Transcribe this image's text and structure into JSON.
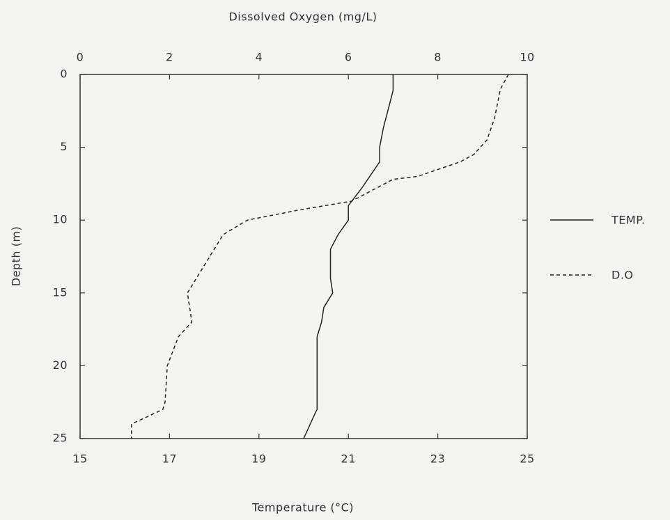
{
  "chart_data": {
    "type": "line",
    "x2label": "Dissolved Oxygen (mg/L)",
    "xlabel": "Temperature (°C)",
    "ylabel": "Depth (m)",
    "xlim": [
      15,
      25
    ],
    "xticks": [
      15,
      17,
      19,
      21,
      23,
      25
    ],
    "x2lim": [
      0,
      10
    ],
    "x2ticks": [
      0,
      2,
      4,
      6,
      8,
      10
    ],
    "ylim": [
      0,
      25
    ],
    "yticks": [
      0,
      5,
      10,
      15,
      20,
      25
    ],
    "y_inverted": true,
    "legend": "right",
    "series": [
      {
        "name": "TEMP.",
        "axis": "x",
        "color": "#222222",
        "dash": false,
        "values": [
          22.0,
          22.0,
          21.78,
          21.7,
          21.7,
          21.3,
          21.0,
          21.0,
          20.77,
          20.6,
          20.6,
          20.65,
          20.45,
          20.4,
          20.3,
          20.3,
          20.25,
          20.0
        ],
        "depth": [
          0,
          1.1,
          3.7,
          5,
          6,
          7.8,
          9,
          10,
          11,
          12,
          14,
          15,
          16,
          17,
          18,
          23,
          23.3,
          25
        ]
      },
      {
        "name": "D.O",
        "axis": "x2",
        "color": "#222222",
        "dash": true,
        "values": [
          9.58,
          9.4,
          9.27,
          9.1,
          8.8,
          8.5,
          7.55,
          7.0,
          6.07,
          4.9,
          3.74,
          3.2,
          3.0,
          2.4,
          2.5,
          2.2,
          1.95,
          1.9,
          1.85,
          1.15,
          1.15
        ],
        "depth": [
          0,
          1,
          3,
          4.5,
          5.5,
          6,
          7,
          7.2,
          8.7,
          9.3,
          10,
          11,
          12,
          15,
          17,
          18,
          20,
          22.5,
          23,
          24,
          25
        ]
      }
    ]
  }
}
